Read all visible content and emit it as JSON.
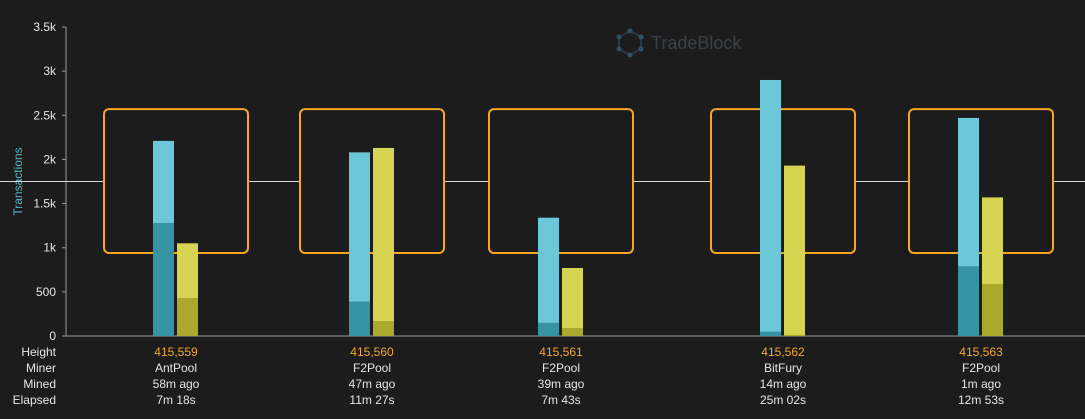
{
  "brand": {
    "name": "TradeBlock",
    "icon": "tradeblock-logo-icon"
  },
  "row_labels": {
    "height": "Height",
    "miner": "Miner",
    "mined": "Mined",
    "elapsed": "Elapsed"
  },
  "colors": {
    "background": "#1c1c1c",
    "tx_bar": "#6cc8d9",
    "tx_bar_dark": "#3593a4",
    "yellow_bar": "#d7d454",
    "yellow_bar_dark": "#aaa92b",
    "box": "#f5a623",
    "avg_line": "#d8d8d8",
    "height_text": "#f5a623",
    "ylabel": "#4fb6c9"
  },
  "chart_data": {
    "type": "bar",
    "ylabel": "Transactions",
    "ylim": [
      0,
      3500
    ],
    "yticks": [
      0,
      500,
      1000,
      1500,
      2000,
      2500,
      3000,
      3500
    ],
    "ytick_labels": [
      "0",
      "500",
      "1k",
      "1.5k",
      "2k",
      "2.5k",
      "3k",
      "3.5k"
    ],
    "average_line": 1750,
    "highlight_range": [
      940,
      2570
    ],
    "blocks": [
      {
        "height": "415,559",
        "miner": "AntPool",
        "mined": "58m ago",
        "elapsed": "7m 18s",
        "tx_total": 2210,
        "tx_dark": 1280,
        "yellow_total": 1050,
        "yellow_dark": 430,
        "highlighted": true
      },
      {
        "height": "415,560",
        "miner": "F2Pool",
        "mined": "47m ago",
        "elapsed": "11m 27s",
        "tx_total": 2080,
        "tx_dark": 390,
        "yellow_total": 2130,
        "yellow_dark": 170,
        "highlighted": true
      },
      {
        "height": "415,561",
        "miner": "F2Pool",
        "mined": "39m ago",
        "elapsed": "7m 43s",
        "tx_total": 1340,
        "tx_dark": 150,
        "yellow_total": 770,
        "yellow_dark": 90,
        "highlighted": true
      },
      {
        "height": "415,562",
        "miner": "BitFury",
        "mined": "14m ago",
        "elapsed": "25m 02s",
        "tx_total": 2900,
        "tx_dark": 50,
        "yellow_total": 1930,
        "yellow_dark": 10,
        "highlighted": true
      },
      {
        "height": "415,563",
        "miner": "F2Pool",
        "mined": "1m ago",
        "elapsed": "12m 53s",
        "tx_total": 2470,
        "tx_dark": 790,
        "yellow_total": 1570,
        "yellow_dark": 590,
        "highlighted": true
      }
    ]
  }
}
